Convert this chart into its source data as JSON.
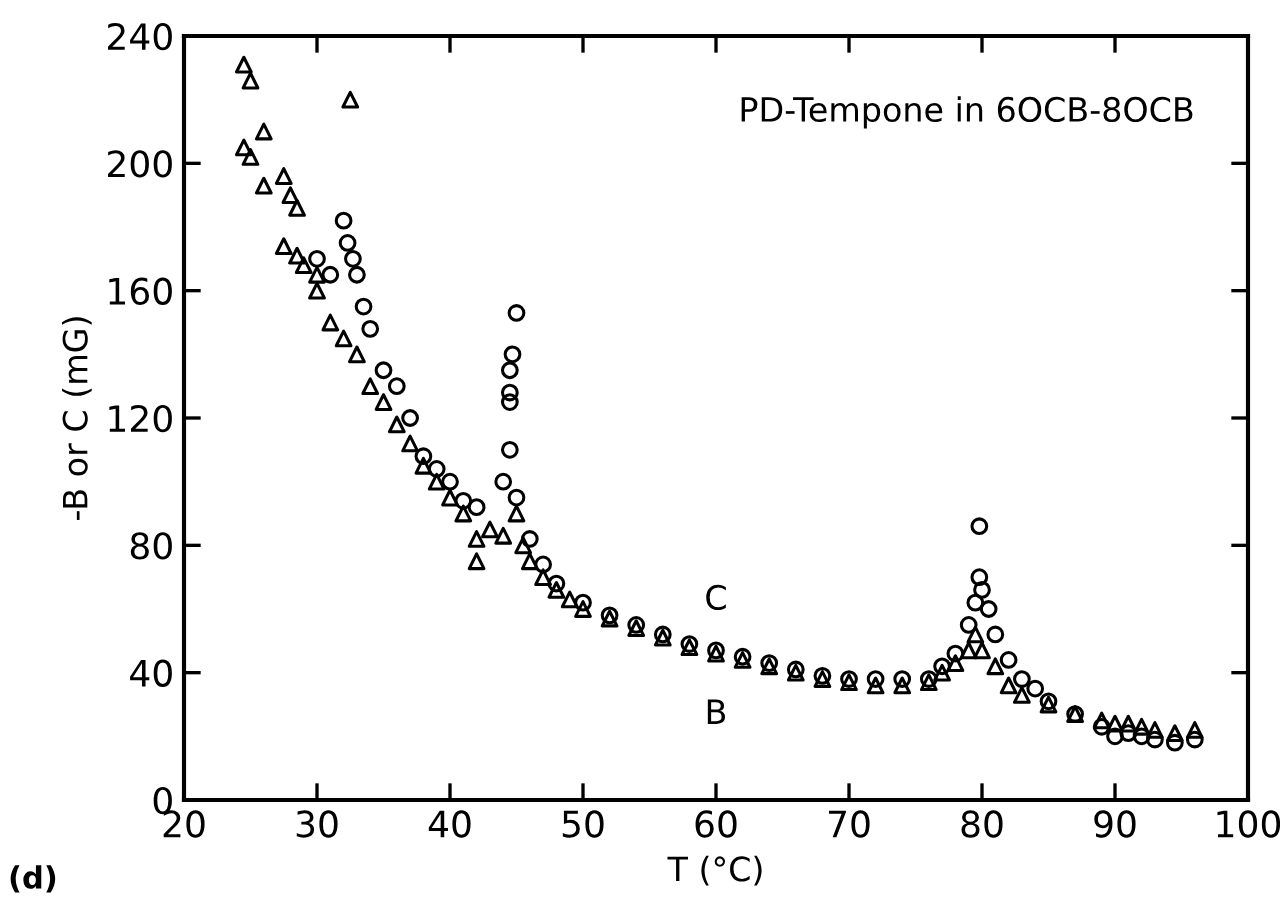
{
  "chart_data": {
    "type": "scatter",
    "title": "PD-Tempone in 6OCB-8OCB",
    "xlabel": "T (°C)",
    "ylabel": "-B or C (mG)",
    "xlim": [
      20,
      100
    ],
    "xticks": [
      20,
      30,
      40,
      50,
      60,
      70,
      80,
      90,
      100
    ],
    "ylim": [
      0,
      240
    ],
    "yticks": [
      0,
      40,
      80,
      120,
      160,
      200,
      240
    ],
    "grid": false,
    "legend": false,
    "annotations": [
      "(d)"
    ],
    "series": [
      {
        "name": "B",
        "color": "#000000",
        "marker": "triangle",
        "x": [
          24.5,
          25,
          24.5,
          25,
          26,
          26,
          27.5,
          28,
          28.5,
          27.5,
          28.5,
          29,
          30,
          30,
          31,
          32,
          32.5,
          33,
          34,
          35,
          36,
          37,
          38,
          39,
          40,
          41,
          42,
          42,
          43,
          44,
          45,
          45.5,
          46,
          47,
          48,
          49,
          50,
          52,
          54,
          56,
          58,
          60,
          62,
          64,
          66,
          68,
          70,
          72,
          74,
          76,
          77,
          78,
          79,
          79.5,
          80,
          81,
          82,
          83,
          85,
          87,
          89,
          90,
          91,
          92,
          93,
          94.5,
          96
        ],
        "values": [
          231,
          226,
          205,
          202,
          210,
          193,
          196,
          190,
          186,
          174,
          171,
          168,
          165,
          160,
          150,
          145,
          220,
          140,
          130,
          125,
          118,
          112,
          105,
          100,
          95,
          90,
          75,
          82,
          85,
          83,
          90,
          80,
          75,
          70,
          66,
          63,
          60,
          57,
          54,
          51,
          48,
          46,
          44,
          42,
          40,
          38,
          37,
          36,
          36,
          37,
          40,
          43,
          47,
          52,
          47,
          42,
          36,
          33,
          30,
          27,
          25,
          24,
          24,
          23,
          22,
          21,
          22
        ]
      },
      {
        "name": "C",
        "color": "#000000",
        "marker": "circle",
        "x": [
          30,
          31,
          32,
          32.3,
          32.7,
          33,
          33.5,
          34,
          35,
          36,
          37,
          38,
          39,
          40,
          41,
          42,
          44,
          44.5,
          44.5,
          44.5,
          44.5,
          44.7,
          45,
          45,
          46,
          47,
          48,
          50,
          52,
          54,
          56,
          58,
          60,
          62,
          64,
          66,
          68,
          70,
          72,
          74,
          76,
          77,
          78,
          79,
          79.5,
          79.8,
          79.8,
          80,
          80.5,
          81,
          82,
          83,
          84,
          85,
          87,
          89,
          90,
          91,
          92,
          93,
          94.5,
          96
        ],
        "values": [
          170,
          165,
          182,
          175,
          170,
          165,
          155,
          148,
          135,
          130,
          120,
          108,
          104,
          100,
          94,
          92,
          100,
          110,
          125,
          128,
          135,
          140,
          153,
          95,
          82,
          74,
          68,
          62,
          58,
          55,
          52,
          49,
          47,
          45,
          43,
          41,
          39,
          38,
          38,
          38,
          38,
          42,
          46,
          55,
          62,
          86,
          70,
          66,
          60,
          52,
          44,
          38,
          35,
          31,
          27,
          23,
          20,
          21,
          20,
          19,
          18,
          19
        ]
      }
    ]
  }
}
